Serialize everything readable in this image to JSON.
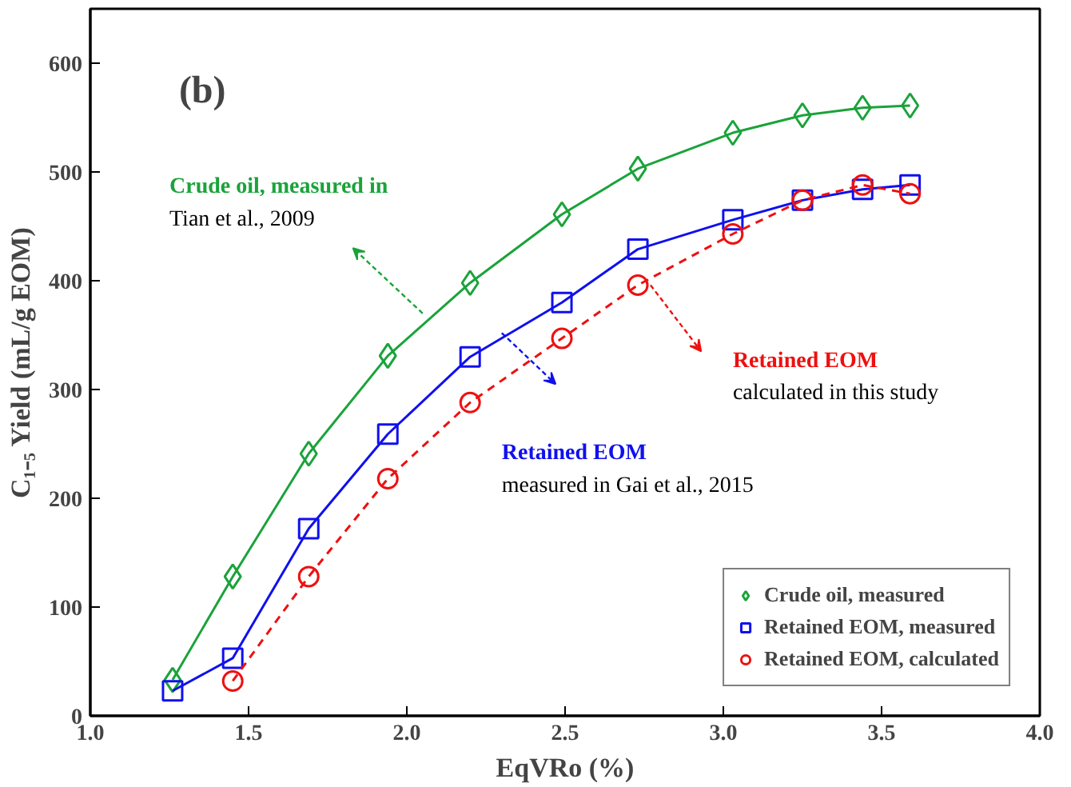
{
  "chart_data": {
    "type": "line",
    "xlabel": "EqVRo (%)",
    "ylabel": "C₁₋₅ Yield (mL/g EOM)",
    "xlim": [
      1.0,
      4.0
    ],
    "xticks": [
      {
        "value": 1.0,
        "label": "1.0"
      },
      {
        "value": 1.5,
        "label": "1.5"
      },
      {
        "value": 2.0,
        "label": "2.0"
      },
      {
        "value": 2.5,
        "label": "2.5"
      },
      {
        "value": 3.0,
        "label": "3.0"
      },
      {
        "value": 3.5,
        "label": "3.5"
      },
      {
        "value": 4.0,
        "label": "4.0"
      }
    ],
    "ylim": [
      0,
      650
    ],
    "yticks": [
      0,
      100,
      200,
      300,
      400,
      500,
      600
    ],
    "grid": false,
    "legend": "bottom right",
    "series": [
      {
        "name": "Crude oil, measured",
        "color": "#1aa33a",
        "marker": "diamond",
        "line_style": "solid",
        "x": [
          1.26,
          1.45,
          1.69,
          1.94,
          2.2,
          2.49,
          2.73,
          3.03,
          3.25,
          3.44,
          3.59
        ],
        "values": [
          33,
          128,
          241,
          331,
          398,
          461,
          503,
          536,
          552,
          559,
          561
        ]
      },
      {
        "name": "Retained EOM, measured",
        "color": "#1010ee",
        "marker": "square",
        "line_style": "solid",
        "x": [
          1.26,
          1.45,
          1.69,
          1.94,
          2.2,
          2.49,
          2.73,
          3.03,
          3.25,
          3.44,
          3.59
        ],
        "values": [
          23,
          53,
          172,
          259,
          330,
          380,
          429,
          456,
          474,
          484,
          488
        ]
      },
      {
        "name": "Retained EOM, calculated",
        "color": "#ee1010",
        "marker": "circle",
        "line_style": "dashed",
        "x": [
          1.45,
          1.69,
          1.94,
          2.2,
          2.49,
          2.73,
          3.03,
          3.25,
          3.44,
          3.59
        ],
        "values": [
          32,
          128,
          218,
          288,
          347,
          396,
          443,
          474,
          488,
          480
        ]
      }
    ],
    "annotations": [
      "(b)",
      "Crude oil, measured in\nTian et al., 2009",
      "Retained EOM\nmeasured in Gai et al., 2015",
      "Retained EOM\ncalculated in this study"
    ]
  }
}
